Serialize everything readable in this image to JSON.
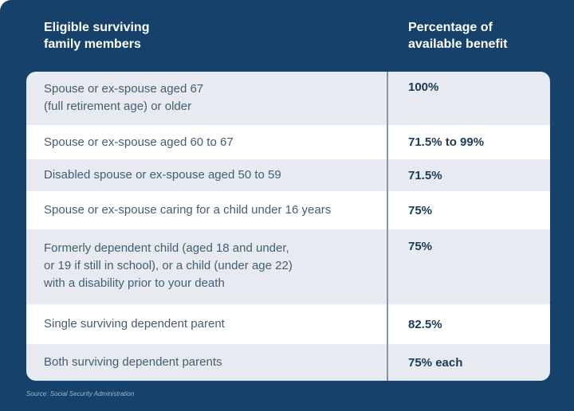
{
  "colors": {
    "background": "#15416A",
    "row_alt": "#E7EBF1",
    "row_white": "#FFFFFF",
    "divider": "#8496AB",
    "member_text": "#455D73",
    "benefit_text": "#1B3A57",
    "header_text": "#FFFFFF",
    "source_text": "#A3B6C6"
  },
  "header": {
    "left": "Eligible surviving\nfamily members",
    "right": "Percentage of\navailable benefit"
  },
  "table": {
    "rows": [
      {
        "member": "Spouse or ex-spouse aged 67\n(full retirement age) or older",
        "benefit": "100%"
      },
      {
        "member": "Spouse or ex-spouse aged 60 to 67",
        "benefit": "71.5% to 99%"
      },
      {
        "member": "Disabled spouse or ex-spouse aged 50 to 59",
        "benefit": "71.5%"
      },
      {
        "member": "Spouse or ex-spouse caring for a child under 16 years",
        "benefit": "75%"
      },
      {
        "member": "Formerly dependent child (aged 18 and under,\nor 19 if still in school), or a child (under age 22)\nwith a disability prior to your death",
        "benefit": "75%"
      },
      {
        "member": "Single surviving dependent parent",
        "benefit": "82.5%"
      },
      {
        "member": "Both surviving dependent parents",
        "benefit": "75% each"
      }
    ]
  },
  "source": "Source: Social Security Administration",
  "chart_data": {
    "type": "table",
    "title": "",
    "columns": [
      "Eligible surviving family members",
      "Percentage of available benefit"
    ],
    "rows": [
      [
        "Spouse or ex-spouse aged 67 (full retirement age) or older",
        "100%"
      ],
      [
        "Spouse or ex-spouse aged 60 to 67",
        "71.5% to 99%"
      ],
      [
        "Disabled spouse or ex-spouse aged 50 to 59",
        "71.5%"
      ],
      [
        "Spouse or ex-spouse caring for a child under 16 years",
        "75%"
      ],
      [
        "Formerly dependent child (aged 18 and under, or 19 if still in school), or a child (under age 22) with a disability prior to your death",
        "75%"
      ],
      [
        "Single surviving dependent parent",
        "82.5%"
      ],
      [
        "Both surviving dependent parents",
        "75% each"
      ]
    ],
    "legend_position": "none",
    "grid": false,
    "source": "Source: Social Security Administration"
  }
}
